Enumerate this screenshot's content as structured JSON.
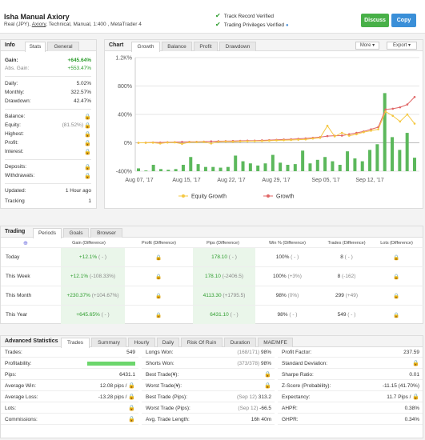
{
  "header": {
    "name": "Isha Manual Axiory",
    "sub_prefix": "Real (JPY),",
    "broker": "Axiory",
    "sub_suffix": ", Technical, Manual, 1:400 , MetaTrader 4",
    "verify1": "Track Record Verified",
    "verify2": "Trading Privileges Verified",
    "discuss_label": "Discuss",
    "copy_label": "Copy"
  },
  "info": {
    "title": "Info",
    "tabs": [
      "Stats",
      "General"
    ],
    "gain_label": "Gain:",
    "gain_value": "+645.64%",
    "abs_gain_label": "Abs. Gain:",
    "abs_gain_value": "+553.47%",
    "daily_label": "Daily:",
    "daily_value": "5.02%",
    "monthly_label": "Monthly:",
    "monthly_value": "322.57%",
    "drawdown_label": "Drawdown:",
    "drawdown_value": "42.47%",
    "balance_label": "Balance:",
    "equity_label": "Equity:",
    "equity_pct": "(81.52%)",
    "highest_label": "Highest:",
    "profit_label": "Profit:",
    "interest_label": "Interest:",
    "deposits_label": "Deposits:",
    "withdrawals_label": "Withdrawals:",
    "updated_label": "Updated:",
    "updated_value": "1 Hour ago",
    "tracking_label": "Tracking",
    "tracking_value": "1"
  },
  "chart": {
    "title": "Chart",
    "tabs": [
      "Growth",
      "Balance",
      "Profit",
      "Drawdown"
    ],
    "more_label": "More",
    "export_label": "Export",
    "legend_equity": "Equity Growth",
    "legend_growth": "Growth",
    "colors": {
      "equity": "#f5c842",
      "growth": "#e06666",
      "bars": "#5cb85c"
    }
  },
  "chart_data": {
    "type": "line",
    "y_ticks": [
      "1.2K%",
      "800%",
      "400%",
      "0%",
      "-400%"
    ],
    "ylim": [
      -400,
      1200
    ],
    "x_ticks": [
      "Aug 07, '17",
      "Aug 15, '17",
      "Aug 22, '17",
      "Aug 29, '17",
      "Sep 05, '17",
      "Sep 12, '17"
    ],
    "series": [
      {
        "name": "Growth",
        "values": [
          0,
          2,
          5,
          4,
          8,
          10,
          12,
          14,
          14,
          17,
          20,
          22,
          24,
          26,
          28,
          30,
          30,
          34,
          38,
          42,
          46,
          50,
          56,
          62,
          70,
          80,
          95,
          100,
          102,
          120,
          140,
          160,
          190,
          220,
          470,
          480,
          500,
          540,
          645
        ]
      },
      {
        "name": "Equity Growth",
        "values": [
          0,
          0,
          2,
          -10,
          4,
          6,
          -15,
          8,
          10,
          12,
          -10,
          14,
          18,
          16,
          20,
          22,
          24,
          26,
          30,
          34,
          36,
          40,
          44,
          48,
          60,
          70,
          240,
          90,
          140,
          100,
          120,
          150,
          170,
          190,
          440,
          380,
          300,
          400,
          270
        ]
      }
    ],
    "bars": [
      40,
      10,
      90,
      30,
      20,
      30,
      90,
      200,
      100,
      60,
      60,
      50,
      60,
      220,
      140,
      110,
      80,
      110,
      230,
      120,
      90,
      100,
      290,
      110,
      160,
      200,
      140,
      90,
      280,
      180,
      140,
      300,
      380,
      1100,
      480,
      300,
      540,
      190
    ]
  },
  "trading": {
    "title": "Trading",
    "tabs": [
      "Periods",
      "Goals",
      "Browser"
    ],
    "headers": [
      "Gain (Difference)",
      "Profit (Difference)",
      "Pips (Difference)",
      "Win % (Difference)",
      "Trades (Difference)",
      "Lots (Difference)"
    ],
    "rows": [
      {
        "label": "Today",
        "gain": "+12.1%",
        "gain_diff": "( - )",
        "pips": "178.10",
        "pips_diff": "( - )",
        "win": "100%",
        "win_diff": "( - )",
        "trades": "8",
        "trades_diff": "( - )"
      },
      {
        "label": "This Week",
        "gain": "+12.1%",
        "gain_diff": "(-108.33%)",
        "pips": "178.10",
        "pips_diff": "(-2406.5)",
        "win": "100%",
        "win_diff": "(+3%)",
        "trades": "8",
        "trades_diff": "(-162)"
      },
      {
        "label": "This Month",
        "gain": "+230.37%",
        "gain_diff": "(+104.67%)",
        "pips": "4113.30",
        "pips_diff": "(+1795.5)",
        "win": "98%",
        "win_diff": "(0%)",
        "trades": "299",
        "trades_diff": "(+49)"
      },
      {
        "label": "This Year",
        "gain": "+645.65%",
        "gain_diff": "( - )",
        "pips": "6431.10",
        "pips_diff": "( - )",
        "win": "98%",
        "win_diff": "( - )",
        "trades": "549",
        "trades_diff": "( - )"
      }
    ]
  },
  "adv": {
    "title": "Advanced Statistics",
    "tabs": [
      "Trades",
      "Summary",
      "Hourly",
      "Daily",
      "Risk Of Ruin",
      "Duration",
      "MAE/MFE"
    ],
    "col1": {
      "trades_label": "Trades:",
      "trades_value": "549",
      "profitability_label": "Profitability:",
      "pips_label": "Pips:",
      "pips_value": "6431.1",
      "avg_win_label": "Average Win:",
      "avg_win_value": "12.08 pips /",
      "avg_loss_label": "Average Loss:",
      "avg_loss_value": "-13.28 pips /",
      "lots_label": "Lots:",
      "commissions_label": "Commissions:"
    },
    "col2": {
      "longs_label": "Longs Won:",
      "longs_sub": "(168/171)",
      "longs_value": "98%",
      "shorts_label": "Shorts Won:",
      "shorts_sub": "(373/378)",
      "shorts_value": "98%",
      "best_label": "Best Trade(¥):",
      "worst_label": "Worst Trade(¥):",
      "best_pips_label": "Best Trade (Pips):",
      "best_pips_sub": "(Sep 12)",
      "best_pips_value": "313.2",
      "worst_pips_label": "Worst Trade (Pips):",
      "worst_pips_sub": "(Sep 12)",
      "worst_pips_value": "-66.5",
      "length_label": "Avg. Trade Length:",
      "length_value": "16h 40m"
    },
    "col3": {
      "pf_label": "Profit Factor:",
      "pf_value": "237.59",
      "sd_label": "Standard Deviation:",
      "sharpe_label": "Sharpe Ratio:",
      "sharpe_value": "0.01",
      "z_label": "Z-Score (Probability):",
      "z_value": "-11.15 (41.70%)",
      "exp_label": "Expectancy:",
      "exp_value": "11.7 Pips /",
      "ahpr_label": "AHPR:",
      "ahpr_value": "0.38%",
      "ghpr_label": "GHPR:",
      "ghpr_value": "0.34%"
    }
  }
}
